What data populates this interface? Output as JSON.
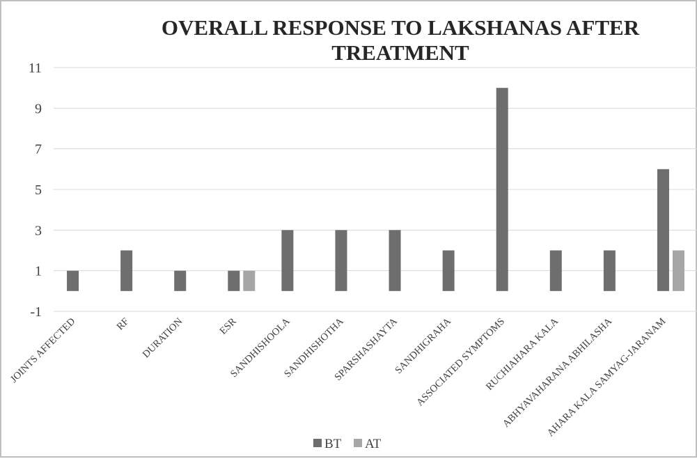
{
  "chart_data": {
    "type": "bar",
    "title": "OVERALL RESPONSE TO LAKSHANAS AFTER TREATMENT",
    "title_lines": [
      "OVERALL RESPONSE TO LAKSHANAS AFTER",
      "TREATMENT"
    ],
    "xlabel": "",
    "ylabel": "",
    "ylim": [
      -1,
      11
    ],
    "yticks": [
      -1,
      1,
      3,
      5,
      7,
      9,
      11
    ],
    "grid": true,
    "legend_position": "bottom",
    "categories": [
      "JOINTS AFFECTED",
      "RF",
      "DURATION",
      "ESR",
      "SANDHISHOOLA",
      "SANDHISHOTHA",
      "SPARSHASHAYTA",
      "SANDHIGRAHA",
      "ASSOCIATED SYMPTOMS",
      "RUCHIAHARA KALA",
      "ABHYAVAHARANA ABHILASHA",
      "AHARA KALA SAMYAG-JARANAM"
    ],
    "series": [
      {
        "name": "BT",
        "color": "#6e6e6e",
        "values": [
          1,
          2,
          1,
          1,
          3,
          3,
          3,
          2,
          10,
          2,
          2,
          6
        ]
      },
      {
        "name": "AT",
        "color": "#a6a6a6",
        "values": [
          0,
          0,
          0,
          1,
          0,
          0,
          0,
          0,
          0,
          0,
          0,
          2
        ]
      }
    ]
  }
}
